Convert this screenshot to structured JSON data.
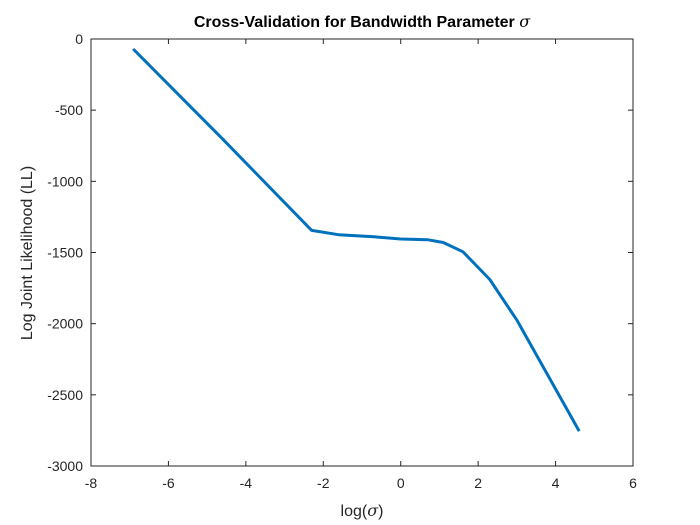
{
  "chart_data": {
    "type": "line",
    "title": "Cross-Validation for Bandwidth Parameter ",
    "title_symbol": "σ",
    "xlabel_prefix": "log(",
    "xlabel_symbol": "σ",
    "xlabel_suffix": ")",
    "ylabel": "Log Joint Likelihood (LL)",
    "xlim": [
      -8,
      6
    ],
    "ylim": [
      -3000,
      0
    ],
    "xticks": [
      -8,
      -6,
      -4,
      -2,
      0,
      2,
      4,
      6
    ],
    "yticks": [
      0,
      -500,
      -1000,
      -1500,
      -2000,
      -2500,
      -3000
    ],
    "grid": false,
    "series": [
      {
        "color": "#0072BD",
        "x": [
          -6.91,
          -4.61,
          -2.3,
          -1.61,
          -0.69,
          0.0,
          0.69,
          1.1,
          1.61,
          2.3,
          3.0,
          4.61
        ],
        "y": [
          -70,
          -700,
          -1345,
          -1375,
          -1390,
          -1405,
          -1410,
          -1430,
          -1495,
          -1690,
          -1975,
          -2755
        ]
      }
    ]
  }
}
